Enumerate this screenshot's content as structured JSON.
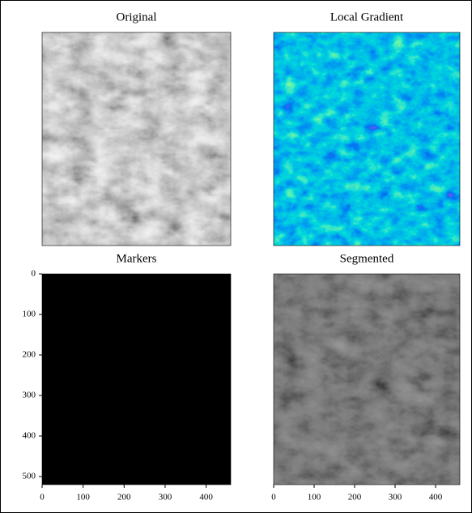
{
  "chart_data": [
    {
      "type": "image",
      "title": "Original"
    },
    {
      "type": "image",
      "title": "Local Gradient"
    },
    {
      "type": "image",
      "title": "Markers",
      "xlim": [
        0,
        460
      ],
      "ylim": [
        520,
        0
      ],
      "xticks": [
        0,
        100,
        200,
        300,
        400
      ],
      "yticks": [
        0,
        100,
        200,
        300,
        400,
        500
      ]
    },
    {
      "type": "image",
      "title": "Segmented",
      "xlim": [
        0,
        460
      ],
      "ylim": [
        520,
        0
      ],
      "xticks": [
        0,
        100,
        200,
        300,
        400
      ]
    }
  ]
}
